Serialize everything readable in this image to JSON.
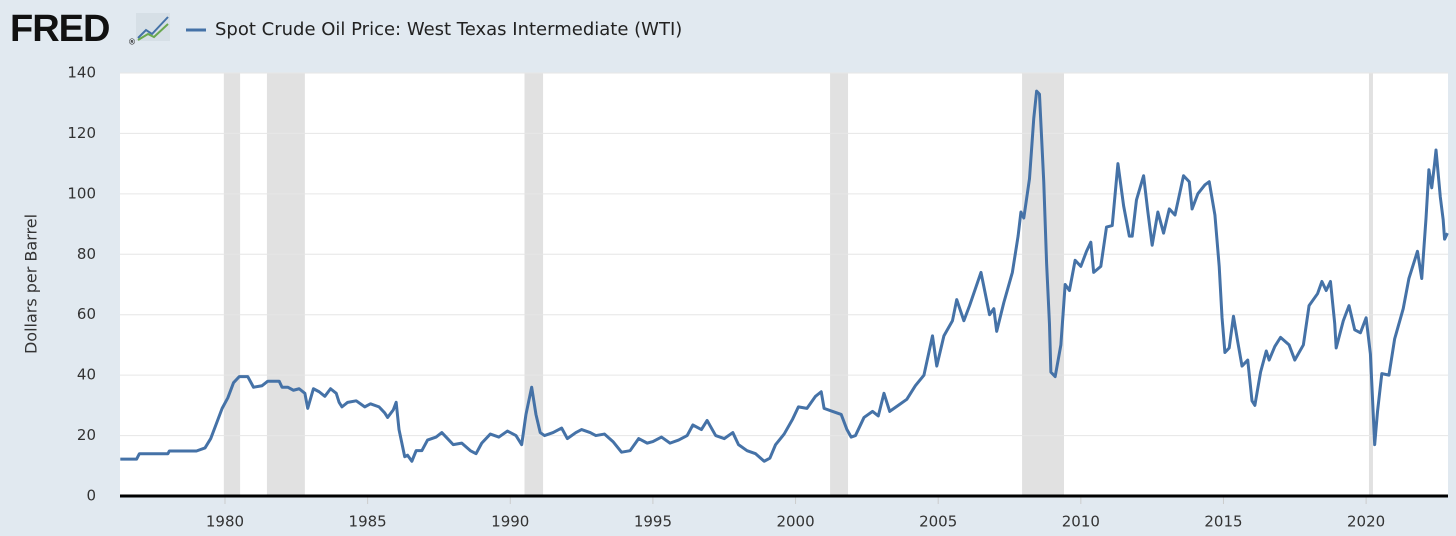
{
  "chart_data": {
    "type": "line",
    "logo": "FRED",
    "logo_mark": "®",
    "title": "Spot Crude Oil Price: West Texas Intermediate (WTI)",
    "y_label": "Dollars per Barrel",
    "xlim": [
      1976.32,
      2022.87
    ],
    "xticks": [
      1980,
      1985,
      1990,
      1995,
      2000,
      2005,
      2010,
      2015,
      2020
    ],
    "ylim": [
      0,
      140
    ],
    "yticks": [
      0,
      20,
      40,
      60,
      80,
      100,
      120,
      140
    ],
    "grid": true,
    "recessions": [
      [
        1979.96,
        1980.53
      ],
      [
        1981.47,
        1982.8
      ],
      [
        1990.5,
        1991.15
      ],
      [
        2001.21,
        2001.84
      ],
      [
        2007.94,
        2009.41
      ],
      [
        2020.1,
        2020.24
      ]
    ],
    "recession_color": "#e1e1e1",
    "x": [
      1976.33,
      1976.9,
      1977.0,
      1978.0,
      1978.05,
      1979.0,
      1979.3,
      1979.5,
      1979.7,
      1979.9,
      1980.1,
      1980.3,
      1980.5,
      1980.8,
      1981.0,
      1981.3,
      1981.5,
      1981.9,
      1982.0,
      1982.2,
      1982.4,
      1982.6,
      1982.8,
      1982.9,
      1983.1,
      1983.3,
      1983.5,
      1983.7,
      1983.9,
      1984.0,
      1984.1,
      1984.3,
      1984.6,
      1984.9,
      1985.1,
      1985.4,
      1985.6,
      1985.7,
      1985.9,
      1986.0,
      1986.1,
      1986.3,
      1986.4,
      1986.55,
      1986.7,
      1986.9,
      1987.1,
      1987.4,
      1987.6,
      1987.8,
      1988.0,
      1988.3,
      1988.6,
      1988.8,
      1989.0,
      1989.3,
      1989.6,
      1989.9,
      1990.2,
      1990.4,
      1990.55,
      1990.75,
      1990.9,
      1991.05,
      1991.2,
      1991.5,
      1991.8,
      1992.0,
      1992.3,
      1992.5,
      1992.8,
      1993.0,
      1993.3,
      1993.6,
      1993.9,
      1994.2,
      1994.5,
      1994.8,
      1995.0,
      1995.3,
      1995.6,
      1995.9,
      1996.2,
      1996.4,
      1996.7,
      1996.9,
      1997.2,
      1997.5,
      1997.8,
      1998.0,
      1998.3,
      1998.6,
      1998.9,
      1999.1,
      1999.3,
      1999.6,
      1999.9,
      2000.1,
      2000.4,
      2000.7,
      2000.9,
      2001.0,
      2001.3,
      2001.6,
      2001.8,
      2001.95,
      2002.1,
      2002.4,
      2002.7,
      2002.9,
      2003.1,
      2003.3,
      2003.6,
      2003.9,
      2004.2,
      2004.5,
      2004.8,
      2004.95,
      2005.2,
      2005.5,
      2005.65,
      2005.9,
      2006.1,
      2006.5,
      2006.8,
      2006.95,
      2007.05,
      2007.3,
      2007.6,
      2007.8,
      2007.9,
      2008.0,
      2008.2,
      2008.35,
      2008.45,
      2008.55,
      2008.7,
      2008.8,
      2008.9,
      2008.95,
      2009.05,
      2009.1,
      2009.3,
      2009.45,
      2009.6,
      2009.8,
      2010.0,
      2010.2,
      2010.35,
      2010.45,
      2010.7,
      2010.9,
      2011.1,
      2011.3,
      2011.5,
      2011.7,
      2011.8,
      2011.95,
      2012.2,
      2012.35,
      2012.5,
      2012.7,
      2012.9,
      2013.1,
      2013.3,
      2013.6,
      2013.8,
      2013.9,
      2014.1,
      2014.35,
      2014.5,
      2014.7,
      2014.85,
      2014.95,
      2015.05,
      2015.2,
      2015.35,
      2015.5,
      2015.65,
      2015.85,
      2016.0,
      2016.1,
      2016.3,
      2016.5,
      2016.6,
      2016.8,
      2017.0,
      2017.3,
      2017.5,
      2017.8,
      2018.0,
      2018.3,
      2018.45,
      2018.6,
      2018.75,
      2018.9,
      2018.95,
      2019.2,
      2019.4,
      2019.6,
      2019.8,
      2020.0,
      2020.15,
      2020.3,
      2020.4,
      2020.55,
      2020.8,
      2021.0,
      2021.3,
      2021.5,
      2021.8,
      2021.95,
      2022.1,
      2022.2,
      2022.3,
      2022.4,
      2022.45,
      2022.6,
      2022.7,
      2022.75,
      2022.85
    ],
    "series": [
      {
        "name": "Spot Crude Oil Price: West Texas Intermediate (WTI)",
        "color": "#4572a7",
        "values": [
          12.2,
          12.2,
          14.0,
          14.0,
          14.9,
          14.9,
          15.9,
          19,
          24,
          29,
          32.5,
          37.5,
          39.5,
          39.5,
          36,
          36.5,
          38,
          38,
          36,
          36,
          35,
          35.5,
          34,
          29,
          35.5,
          34.5,
          33,
          35.5,
          34,
          31,
          29.5,
          31,
          31.5,
          29.5,
          30.5,
          29.5,
          27.5,
          26,
          28.5,
          31,
          22,
          13,
          13.5,
          11.5,
          15,
          15,
          18.5,
          19.5,
          21,
          19,
          17,
          17.5,
          15,
          14,
          17.5,
          20.5,
          19.5,
          21.5,
          20,
          17,
          27,
          36,
          27,
          21,
          20,
          21,
          22.5,
          19,
          21,
          22,
          21,
          20,
          20.5,
          18,
          14.5,
          15,
          19,
          17.5,
          18,
          19.5,
          17.5,
          18.5,
          20,
          23.5,
          22,
          25,
          20,
          19,
          21,
          17,
          15,
          14,
          11.5,
          12.5,
          17,
          20.5,
          25.5,
          29.5,
          29,
          33,
          34.5,
          29,
          28,
          27,
          22,
          19.5,
          20,
          26,
          28,
          26.5,
          34,
          28,
          30,
          32,
          36.5,
          40,
          53,
          43,
          53,
          58,
          65,
          58,
          63,
          74,
          60,
          62,
          54.5,
          64,
          74,
          86,
          94,
          92,
          105,
          125,
          134,
          133,
          104,
          77,
          57,
          41,
          40,
          39.5,
          50,
          70,
          68,
          78,
          76,
          81,
          84,
          74,
          76,
          89,
          89.5,
          110,
          96,
          86,
          86,
          98,
          106,
          94,
          83,
          94,
          87,
          95,
          93,
          106,
          104,
          95,
          100,
          103,
          104,
          93,
          76,
          59,
          47.5,
          49,
          59.5,
          51,
          43,
          45,
          31.5,
          30,
          41,
          48,
          45,
          49.5,
          52.5,
          50,
          45,
          50,
          63,
          67,
          71,
          68,
          71,
          57,
          49,
          58,
          63,
          55,
          54,
          59,
          47,
          17,
          28,
          40.5,
          40,
          52,
          62,
          72,
          81,
          72,
          92,
          108,
          102,
          110,
          114.5,
          99,
          91.5,
          85,
          87
        ]
      }
    ]
  }
}
